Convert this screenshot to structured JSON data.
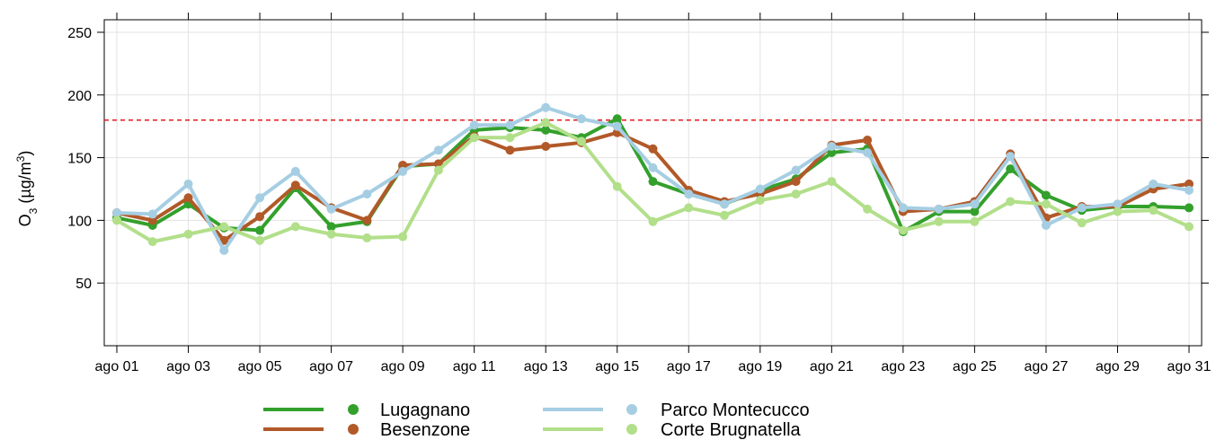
{
  "chart_data": {
    "type": "line",
    "y_label_parts": [
      "O",
      "3",
      " (µg/m",
      "3",
      ")"
    ],
    "categories": [
      "ago 01",
      null,
      "ago 03",
      null,
      "ago 05",
      null,
      "ago 07",
      null,
      "ago 09",
      null,
      "ago 11",
      null,
      "ago 13",
      null,
      "ago 15",
      null,
      "ago 17",
      null,
      "ago 19",
      null,
      "ago 21",
      null,
      "ago 23",
      null,
      "ago 25",
      null,
      "ago 27",
      null,
      "ago 29",
      null,
      "ago 31"
    ],
    "ylim": [
      0,
      260
    ],
    "yticks": [
      50,
      100,
      150,
      200,
      250
    ],
    "grid": true,
    "threshold": 180,
    "threshold_color": "#e31a1c",
    "series": [
      {
        "name": "Lugagnano",
        "color": "#33a02c",
        "values": [
          102,
          96,
          113,
          94,
          92,
          126,
          95,
          99,
          143,
          145,
          172,
          174,
          172,
          166,
          181,
          131,
          121,
          113,
          124,
          133,
          154,
          157,
          91,
          107,
          107,
          141,
          120,
          108,
          111,
          111,
          110
        ]
      },
      {
        "name": "Besenzone",
        "color": "#b15928",
        "values": [
          106,
          100,
          118,
          84,
          103,
          128,
          110,
          100,
          144,
          145,
          167,
          156,
          159,
          162,
          170,
          157,
          124,
          115,
          121,
          131,
          160,
          164,
          107,
          109,
          115,
          153,
          102,
          111,
          111,
          125,
          129
        ]
      },
      {
        "name": "Parco Montecucco",
        "color": "#a6cee3",
        "values": [
          106,
          105,
          129,
          76,
          118,
          139,
          109,
          121,
          139,
          156,
          176,
          176,
          190,
          181,
          175,
          142,
          121,
          113,
          125,
          140,
          159,
          154,
          110,
          109,
          113,
          151,
          96,
          110,
          113,
          129,
          124
        ]
      },
      {
        "name": "Corte Brugnatella",
        "color": "#b2df8a",
        "values": [
          100,
          83,
          89,
          95,
          84,
          95,
          89,
          86,
          87,
          140,
          166,
          166,
          178,
          163,
          127,
          99,
          110,
          104,
          116,
          121,
          131,
          109,
          92,
          99,
          99,
          115,
          113,
          98,
          107,
          108,
          95
        ]
      }
    ]
  }
}
